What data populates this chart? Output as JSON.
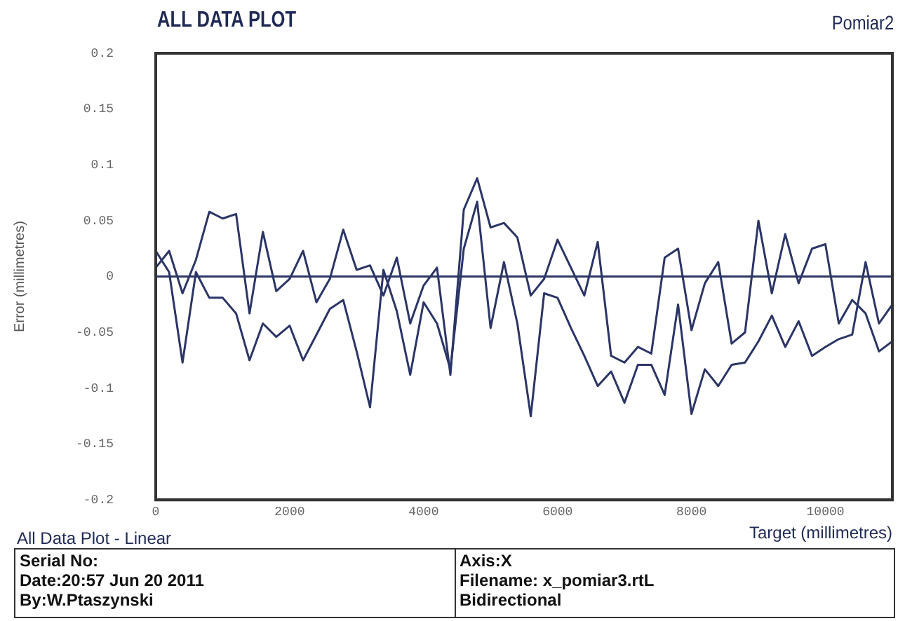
{
  "chart_data": {
    "type": "line",
    "title": "ALL DATA PLOT",
    "subtitle": "Pomiar2",
    "xlabel": "Target (millimetres)",
    "ylabel": "Error (millimetres)",
    "x": [
      0,
      200,
      400,
      600,
      800,
      1000,
      1200,
      1400,
      1600,
      1800,
      2000,
      2200,
      2400,
      2600,
      2800,
      3000,
      3200,
      3400,
      3600,
      3800,
      4000,
      4200,
      4400,
      4600,
      4800,
      5000,
      5200,
      5400,
      5600,
      5800,
      6000,
      6200,
      6400,
      6600,
      6800,
      7000,
      7200,
      7400,
      7600,
      7800,
      8000,
      8200,
      8400,
      8600,
      8800,
      9000,
      9200,
      9400,
      9600,
      9800,
      10000,
      10200,
      10400,
      10600,
      10800,
      11000
    ],
    "series": [
      {
        "color": "#2b3566",
        "values": [
          0.008,
          0.023,
          -0.015,
          0.015,
          0.058,
          0.052,
          0.056,
          -0.033,
          0.04,
          -0.013,
          -0.002,
          0.023,
          -0.023,
          -0.002,
          0.042,
          0.006,
          0.01,
          -0.017,
          0.017,
          -0.042,
          -0.008,
          0.008,
          -0.088,
          0.06,
          0.088,
          0.044,
          0.048,
          0.035,
          -0.017,
          -0.002,
          0.033,
          0.008,
          -0.017,
          0.031,
          -0.071,
          -0.077,
          -0.063,
          -0.069,
          0.017,
          0.025,
          -0.048,
          -0.006,
          0.013,
          -0.06,
          -0.05,
          0.05,
          -0.015,
          0.038,
          -0.006,
          0.025,
          0.029,
          -0.042,
          -0.021,
          -0.033,
          -0.067,
          -0.058
        ]
      },
      {
        "color": "#2b3566",
        "values": [
          0.023,
          0.004,
          -0.077,
          0.004,
          -0.019,
          -0.019,
          -0.033,
          -0.075,
          -0.042,
          -0.054,
          -0.044,
          -0.075,
          -0.052,
          -0.029,
          -0.021,
          -0.067,
          -0.117,
          0.006,
          -0.031,
          -0.088,
          -0.023,
          -0.042,
          -0.083,
          0.025,
          0.067,
          -0.046,
          0.013,
          -0.042,
          -0.125,
          -0.015,
          -0.019,
          -0.046,
          -0.071,
          -0.098,
          -0.085,
          -0.113,
          -0.079,
          -0.079,
          -0.106,
          -0.025,
          -0.123,
          -0.083,
          -0.098,
          -0.079,
          -0.077,
          -0.058,
          -0.035,
          -0.063,
          -0.04,
          -0.071,
          -0.063,
          -0.056,
          -0.052,
          0.013,
          -0.042,
          -0.025
        ]
      }
    ],
    "xlim": [
      0,
      11000
    ],
    "xticks": [
      0,
      2000,
      4000,
      6000,
      8000,
      10000
    ],
    "ylim": [
      -0.2,
      0.2
    ],
    "yticks": [
      -0.2,
      -0.15,
      -0.1,
      -0.05,
      0,
      0.05,
      0.1,
      0.15,
      0.2
    ],
    "ref_lines": [
      {
        "axis": "y",
        "value": 0,
        "color": "#2b3566"
      }
    ],
    "grid": false,
    "legend": false,
    "marker": "none",
    "line_style": "solid",
    "annotations": [
      "All Data Plot - Linear",
      "Serial No:",
      "Date:20:57 Jun 20 2011",
      "By:W.Ptaszynski",
      "Axis:X",
      "Filename: x_pomiar3.rtL",
      "Bidirectional"
    ]
  }
}
